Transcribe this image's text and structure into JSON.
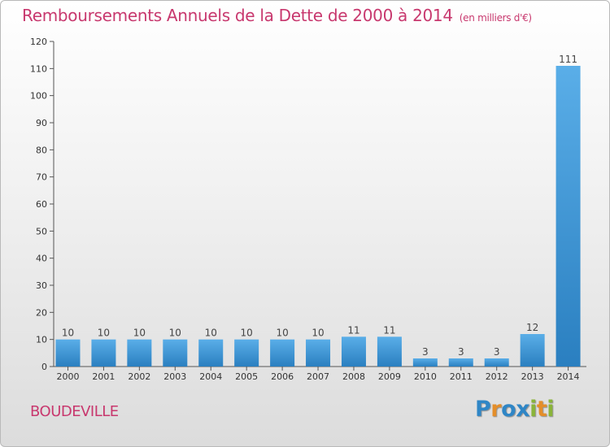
{
  "header": {
    "title": "Remboursements Annuels de la Dette de 2000 à 2014",
    "unit": "(en milliers d'€)"
  },
  "footer": {
    "city": "BOUDEVILLE",
    "logo_letters": [
      "P",
      "r",
      "o",
      "x",
      "i",
      "t",
      "i"
    ],
    "logo_colors": [
      "#2f86c6",
      "#e48e2a",
      "#2f86c6",
      "#2f86c6",
      "#8ab43a",
      "#e48e2a",
      "#8ab43a"
    ]
  },
  "colors": {
    "accent": "#c8386e",
    "bar_top": "#5aaee8",
    "bar_bottom": "#2a7fc0"
  },
  "chart_data": {
    "type": "bar",
    "categories": [
      "2000",
      "2001",
      "2002",
      "2003",
      "2004",
      "2005",
      "2006",
      "2007",
      "2008",
      "2009",
      "2010",
      "2011",
      "2012",
      "2013",
      "2014"
    ],
    "values": [
      10,
      10,
      10,
      10,
      10,
      10,
      10,
      10,
      11,
      11,
      3,
      3,
      3,
      12,
      111
    ],
    "title": "Remboursements Annuels de la Dette de 2000 à 2014",
    "xlabel": "",
    "ylabel": "",
    "ylim": [
      0,
      120
    ],
    "yticks": [
      0,
      10,
      20,
      30,
      40,
      50,
      60,
      70,
      80,
      90,
      100,
      110,
      120
    ],
    "grid": false,
    "data_labels": true
  }
}
